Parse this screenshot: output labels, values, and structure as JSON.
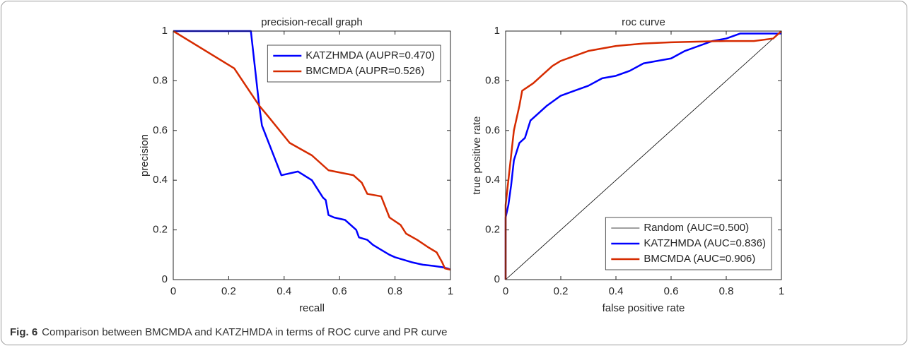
{
  "chart_data": [
    {
      "type": "line",
      "title": "precision-recall graph",
      "xlabel": "recall",
      "ylabel": "precision",
      "xlim": [
        0,
        1
      ],
      "ylim": [
        0,
        1
      ],
      "xticks": [
        0,
        0.2,
        0.4,
        0.6,
        0.8,
        1
      ],
      "yticks": [
        0,
        0.2,
        0.4,
        0.6,
        0.8,
        1
      ],
      "legend": "upper right",
      "series": [
        {
          "name": "KATZHMDA (AUPR=0.470)",
          "color": "#0000ff",
          "line_width": 2.5,
          "x": [
            0,
            0.27,
            0.28,
            0.31,
            0.32,
            0.39,
            0.45,
            0.5,
            0.54,
            0.55,
            0.56,
            0.58,
            0.62,
            0.65,
            0.66,
            0.67,
            0.7,
            0.72,
            0.75,
            0.78,
            0.8,
            0.83,
            0.86,
            0.9,
            0.94,
            0.97,
            0.99,
            1
          ],
          "values": [
            1,
            1,
            1,
            0.7,
            0.62,
            0.42,
            0.435,
            0.4,
            0.33,
            0.32,
            0.26,
            0.25,
            0.24,
            0.21,
            0.2,
            0.17,
            0.16,
            0.14,
            0.12,
            0.1,
            0.09,
            0.08,
            0.07,
            0.06,
            0.055,
            0.05,
            0.045,
            0.04
          ]
        },
        {
          "name": "BMCMDA (AUPR=0.526)",
          "color": "#d62b00",
          "line_width": 2.5,
          "x": [
            0,
            0.22,
            0.31,
            0.34,
            0.42,
            0.5,
            0.56,
            0.65,
            0.68,
            0.7,
            0.75,
            0.78,
            0.82,
            0.84,
            0.88,
            0.92,
            0.95,
            0.96,
            0.97,
            0.98,
            1
          ],
          "values": [
            1,
            0.85,
            0.7,
            0.66,
            0.55,
            0.5,
            0.44,
            0.42,
            0.39,
            0.345,
            0.335,
            0.25,
            0.22,
            0.185,
            0.16,
            0.13,
            0.11,
            0.09,
            0.07,
            0.045,
            0.04
          ]
        }
      ]
    },
    {
      "type": "line",
      "title": "roc curve",
      "xlabel": "false positive rate",
      "ylabel": "true positive rate",
      "xlim": [
        0,
        1
      ],
      "ylim": [
        0,
        1
      ],
      "xticks": [
        0,
        0.2,
        0.4,
        0.6,
        0.8,
        1
      ],
      "yticks": [
        0,
        0.2,
        0.4,
        0.6,
        0.8,
        1
      ],
      "legend": "lower right",
      "series": [
        {
          "name": "Random (AUC=0.500)",
          "color": "#000000",
          "line_width": 0.8,
          "x": [
            0,
            1
          ],
          "values": [
            0,
            1
          ]
        },
        {
          "name": "KATZHMDA (AUC=0.836)",
          "color": "#0000ff",
          "line_width": 2.5,
          "x": [
            0,
            0,
            0.01,
            0.02,
            0.03,
            0.05,
            0.07,
            0.09,
            0.12,
            0.15,
            0.2,
            0.25,
            0.3,
            0.35,
            0.4,
            0.45,
            0.5,
            0.55,
            0.6,
            0.65,
            0.7,
            0.75,
            0.8,
            0.85,
            1
          ],
          "values": [
            0,
            0.25,
            0.3,
            0.38,
            0.48,
            0.55,
            0.57,
            0.64,
            0.67,
            0.7,
            0.74,
            0.76,
            0.78,
            0.81,
            0.82,
            0.84,
            0.87,
            0.88,
            0.89,
            0.92,
            0.94,
            0.96,
            0.97,
            0.99,
            0.99
          ]
        },
        {
          "name": "BMCMDA (AUC=0.906)",
          "color": "#d62b00",
          "line_width": 2.5,
          "x": [
            0,
            0,
            0.01,
            0.02,
            0.03,
            0.05,
            0.06,
            0.1,
            0.13,
            0.17,
            0.2,
            0.25,
            0.3,
            0.4,
            0.5,
            0.6,
            0.8,
            0.9,
            0.97,
            1
          ],
          "values": [
            0,
            0.3,
            0.4,
            0.5,
            0.6,
            0.7,
            0.76,
            0.79,
            0.82,
            0.86,
            0.88,
            0.9,
            0.92,
            0.94,
            0.95,
            0.955,
            0.96,
            0.96,
            0.97,
            1
          ]
        }
      ]
    }
  ],
  "caption": {
    "label": "Fig. 6",
    "text": "Comparison between BMCMDA and KATZHMDA in terms of ROC curve and PR curve"
  }
}
